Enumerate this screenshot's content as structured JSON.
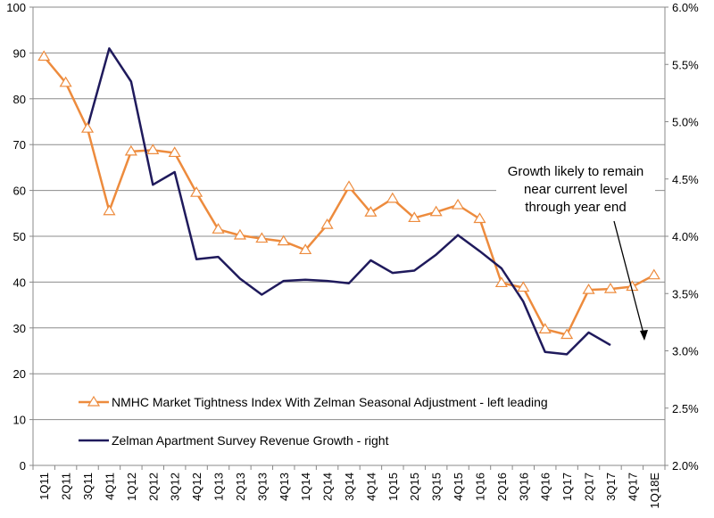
{
  "chart_data": {
    "type": "line",
    "title": "",
    "categories": [
      "1Q11",
      "2Q11",
      "3Q11",
      "4Q11",
      "1Q12",
      "2Q12",
      "3Q12",
      "4Q12",
      "1Q13",
      "2Q13",
      "3Q13",
      "4Q13",
      "1Q14",
      "2Q14",
      "3Q14",
      "4Q14",
      "1Q15",
      "2Q15",
      "3Q15",
      "4Q15",
      "1Q16",
      "2Q16",
      "3Q16",
      "4Q16",
      "1Q17",
      "2Q17",
      "3Q17",
      "4Q17",
      "1Q18E"
    ],
    "left_axis": {
      "min": 0,
      "max": 100,
      "ticks": [
        "0",
        "10",
        "20",
        "30",
        "40",
        "50",
        "60",
        "70",
        "80",
        "90",
        "100"
      ]
    },
    "right_axis": {
      "min": 2.0,
      "max": 6.0,
      "ticks": [
        "2.0%",
        "2.5%",
        "3.0%",
        "3.5%",
        "4.0%",
        "4.5%",
        "5.0%",
        "5.5%",
        "6.0%"
      ]
    },
    "series": [
      {
        "name": "NMHC Market Tightness Index With Zelman Seasonal Adjustment - left leading",
        "axis": "left",
        "color": "#ED8B3D",
        "marker": "triangle",
        "values": [
          89.2,
          83.5,
          73.5,
          55.5,
          68.5,
          68.8,
          68.2,
          59.5,
          51.5,
          50.2,
          49.5,
          48.9,
          47.0,
          52.5,
          60.8,
          55.2,
          58.2,
          54.0,
          55.3,
          56.8,
          53.8,
          39.8,
          38.8,
          29.7,
          28.5,
          38.3,
          38.5,
          39.0,
          41.5
        ]
      },
      {
        "name": "Zelman Apartment Survey Revenue Growth - right",
        "axis": "right",
        "color": "#1F1A5C",
        "marker": "none",
        "values": [
          null,
          null,
          4.95,
          5.64,
          5.35,
          4.45,
          4.56,
          3.8,
          3.82,
          3.63,
          3.49,
          3.61,
          3.62,
          3.61,
          3.59,
          3.79,
          3.68,
          3.7,
          3.84,
          4.01,
          3.87,
          3.72,
          3.43,
          2.99,
          2.97,
          3.16,
          3.05,
          null,
          null
        ]
      }
    ],
    "annotation": {
      "lines": [
        "Growth likely to remain",
        "near current level",
        "through year end"
      ]
    },
    "grid": true,
    "legend": "bottom-left"
  }
}
